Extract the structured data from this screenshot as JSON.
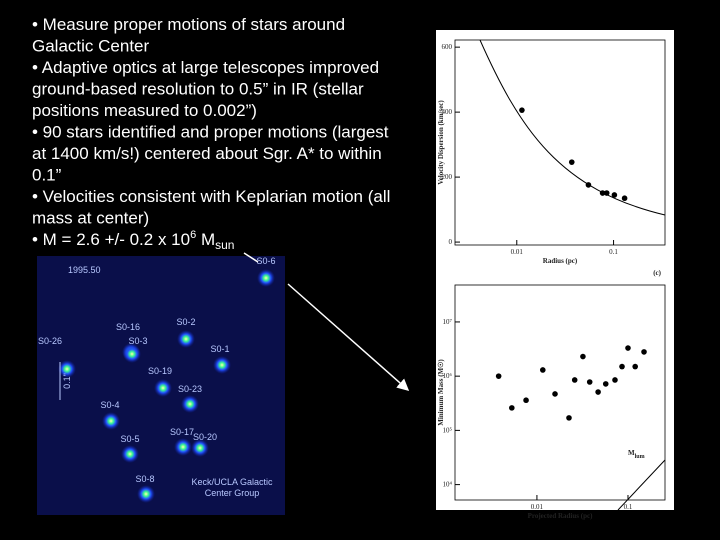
{
  "slide": {
    "lines": [
      "• Measure proper motions of stars around",
      "Galactic Center",
      "• Adaptive optics at large telescopes improved",
      "ground-based resolution to 0.5” in IR (stellar",
      "positions measured to 0.002”)",
      "• 90 stars identified and proper motions (largest",
      "at 1400 km/s!) centered about Sgr. A* to within",
      "0.1”",
      "• Velocities consistent with Keplarian motion (all",
      "mass at center)"
    ],
    "mass_line": {
      "text": "• M = 2.6 +/- 0.2 x 10",
      "exp": "6",
      "unit": " M",
      "unit_sub": "sun"
    }
  },
  "star_image": {
    "epoch": "1995.50",
    "stars": [
      "S0-6",
      "S0-16",
      "S0-2",
      "S0-26",
      "S0-3",
      "S0-1",
      "S0-19",
      "S0-23",
      "S0-4",
      "S0-5",
      "S0-17",
      "S0-20",
      "S0-8"
    ],
    "scale": "0.1\"",
    "credit_lines": [
      "Keck/UCLA Galactic",
      "Center Group"
    ]
  },
  "chart_data": [
    {
      "type": "scatter",
      "x_label": "Radius (pc)",
      "y_label": "Velocity Dispersion (km/sec)",
      "x_log": true,
      "xlim": [
        0.0023,
        0.34
      ],
      "ylim": [
        -9,
        622
      ],
      "xticks": [
        0.01,
        0.1
      ],
      "yticks": [
        0,
        200,
        400,
        600
      ],
      "x": [
        0.0113,
        0.037,
        0.055,
        0.077,
        0.085,
        0.102,
        0.13
      ],
      "values": [
        406,
        246,
        176,
        151,
        151,
        145,
        135
      ],
      "color": "#000000"
    },
    {
      "type": "scatter",
      "panel_label": "(c)",
      "x_label": "Projected Radius (pc)",
      "y_label": "Minimum Mass (M☉)",
      "model_label": {
        "text": "M",
        "sub": "lum"
      },
      "x_log": true,
      "y_log": true,
      "xlim": [
        0.00126,
        0.255
      ],
      "ylim": [
        5200,
        48000000
      ],
      "xticks": [
        0.01,
        0.1
      ],
      "yticks": [
        {
          "value": 10000,
          "label": "10⁴"
        },
        {
          "value": 100000,
          "label": "10⁵"
        },
        {
          "value": 1000000,
          "label": "10⁶"
        },
        {
          "value": 10000000,
          "label": "10⁷"
        }
      ],
      "x": [
        0.0038,
        0.0053,
        0.0076,
        0.0116,
        0.0158,
        0.0225,
        0.026,
        0.032,
        0.038,
        0.047,
        0.057,
        0.072,
        0.086,
        0.1,
        0.12,
        0.15
      ],
      "values": [
        1000000,
        260000,
        360000,
        1300000,
        470000,
        170000,
        850000,
        2300000,
        780000,
        510000,
        720000,
        850000,
        1500000,
        3300000,
        1500000,
        2800000
      ],
      "color": "#000000"
    }
  ]
}
